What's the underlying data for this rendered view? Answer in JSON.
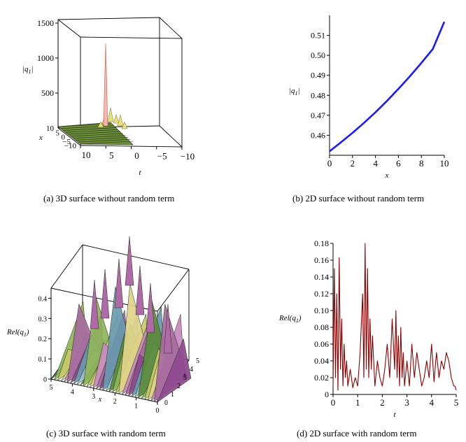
{
  "figure": {
    "captions": {
      "a": "(a)  3D surface without random term",
      "b": "(b)  2D surface without random term",
      "c": "(c)  3D surface with random term",
      "d": "(d)  2D surface with random term"
    }
  },
  "colors": {
    "panel_b_line": "#1a1aff",
    "panel_d_line": "#8b0000",
    "surface_dark": "#1f2a12"
  },
  "chart_data": [
    {
      "id": "a",
      "type": "surface3d",
      "zlabel": "|q_1|",
      "zlabel_main": "|q",
      "zlabel_sub": "1",
      "zlabel_close": "|",
      "xlabel": "x",
      "tlabel": "t",
      "zticks": [
        "500",
        "1000",
        "1500"
      ],
      "zticks_values": [
        500,
        1000,
        1500
      ],
      "zlim": [
        0,
        1550
      ],
      "xticks_labels": [
        "10",
        "5",
        "0",
        "−5",
        "−10"
      ],
      "tticks_labels": [
        "10",
        "5",
        "0",
        "−5",
        "−10"
      ],
      "xrange": [
        -10,
        10
      ],
      "trange": [
        -10,
        10
      ],
      "peak": {
        "x": 0,
        "t": 0,
        "value": 1210
      }
    },
    {
      "id": "b",
      "type": "line",
      "xlabel": "x",
      "ylabel": "|q_1|",
      "ylabel_main": "|q",
      "ylabel_sub": "1",
      "ylabel_close": "|",
      "xlim": [
        0,
        10
      ],
      "ylim": [
        0.45,
        0.52
      ],
      "xticks": [
        "0",
        "2",
        "4",
        "6",
        "8",
        "10"
      ],
      "xticks_values": [
        0,
        2,
        4,
        6,
        8,
        10
      ],
      "yticks": [
        "0.46",
        "0.47",
        "0.48",
        "0.49",
        "0.50",
        "0.51"
      ],
      "yticks_values": [
        0.46,
        0.47,
        0.48,
        0.49,
        0.5,
        0.51
      ],
      "series": [
        {
          "x": [
            0,
            1,
            2,
            3,
            4,
            5,
            6,
            7,
            8,
            9,
            10
          ],
          "y": [
            0.452,
            0.4565,
            0.4612,
            0.4662,
            0.4715,
            0.4772,
            0.4832,
            0.4895,
            0.4962,
            0.5032,
            0.5168
          ]
        }
      ]
    },
    {
      "id": "c",
      "type": "surface3d",
      "zlabel": "Rel(q_1)",
      "zlabel_main": "Rel(q",
      "zlabel_sub": "1",
      "zlabel_close": ")",
      "xlabel": "x",
      "tlabel": "t",
      "zticks": [
        "0",
        "0.1",
        "0.2",
        "0.3",
        "0.4"
      ],
      "zticks_values": [
        0,
        0.1,
        0.2,
        0.3,
        0.4
      ],
      "zlim": [
        0,
        0.45
      ],
      "xticks_labels": [
        "5",
        "4",
        "3",
        "2",
        "1",
        "0"
      ],
      "tticks_labels": [
        "0",
        "1",
        "2",
        "3",
        "4",
        "5"
      ],
      "xrange": [
        0,
        5
      ],
      "trange": [
        0,
        5
      ]
    },
    {
      "id": "d",
      "type": "line",
      "xlabel": "t",
      "ylabel": "Rel(q_1)",
      "ylabel_main": "Rel(q",
      "ylabel_sub": "1",
      "ylabel_close": ")",
      "xlim": [
        0,
        5
      ],
      "ylim": [
        0,
        0.18
      ],
      "xticks": [
        "0",
        "1",
        "2",
        "3",
        "4",
        "5"
      ],
      "xticks_values": [
        0,
        1,
        2,
        3,
        4,
        5
      ],
      "yticks": [
        "0",
        "0.02",
        "0.04",
        "0.06",
        "0.08",
        "0.10",
        "0.12",
        "0.14",
        "0.16",
        "0.18"
      ],
      "yticks_values": [
        0,
        0.02,
        0.04,
        0.06,
        0.08,
        0.1,
        0.12,
        0.14,
        0.16,
        0.18
      ],
      "series": [
        {
          "x": [
            0,
            0.05,
            0.1,
            0.15,
            0.2,
            0.25,
            0.3,
            0.35,
            0.4,
            0.45,
            0.5,
            0.55,
            0.6,
            0.7,
            0.8,
            0.9,
            1.0,
            1.1,
            1.2,
            1.25,
            1.3,
            1.35,
            1.4,
            1.45,
            1.5,
            1.55,
            1.6,
            1.7,
            1.8,
            1.9,
            2.0,
            2.1,
            2.2,
            2.3,
            2.4,
            2.5,
            2.55,
            2.6,
            2.65,
            2.7,
            2.75,
            2.8,
            2.85,
            2.9,
            3.0,
            3.1,
            3.2,
            3.3,
            3.4,
            3.5,
            3.6,
            3.7,
            3.8,
            3.9,
            4.0,
            4.1,
            4.2,
            4.3,
            4.4,
            4.5,
            4.6,
            4.7,
            4.8,
            4.9,
            4.95,
            5.0
          ],
          "y": [
            0.01,
            0.15,
            0.02,
            0.12,
            0.005,
            0.163,
            0.03,
            0.09,
            0.01,
            0.06,
            0.02,
            0.04,
            0.01,
            0.03,
            0.008,
            0.02,
            0.01,
            0.05,
            0.12,
            0.02,
            0.18,
            0.03,
            0.15,
            0.02,
            0.09,
            0.03,
            0.07,
            0.01,
            0.04,
            0.02,
            0.01,
            0.03,
            0.06,
            0.02,
            0.09,
            0.03,
            0.1,
            0.02,
            0.07,
            0.01,
            0.08,
            0.02,
            0.05,
            0.01,
            0.04,
            0.01,
            0.06,
            0.02,
            0.05,
            0.03,
            0.01,
            0.02,
            0.04,
            0.02,
            0.06,
            0.015,
            0.05,
            0.02,
            0.04,
            0.03,
            0.05,
            0.04,
            0.02,
            0.01,
            0.01,
            0.005
          ]
        }
      ]
    }
  ]
}
